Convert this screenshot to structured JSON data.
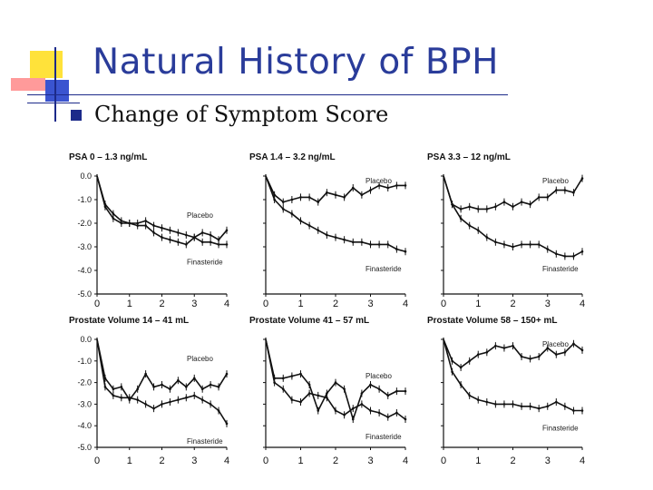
{
  "slide": {
    "title": "Natural History of BPH",
    "bullet": "Change of Symptom Score"
  },
  "colors": {
    "title": "#2a3c9a",
    "bullet": "#1c2a8a",
    "accent_yellow": "#ffe23a",
    "accent_red": "#ff8080",
    "line": "#111111"
  },
  "chart_data": [
    {
      "type": "line",
      "title": "PSA 0 – 1.3 ng/mL",
      "x": [
        0,
        0.25,
        0.5,
        0.75,
        1,
        1.25,
        1.5,
        1.75,
        2,
        2.25,
        2.5,
        2.75,
        3,
        3.25,
        3.5,
        3.75,
        4
      ],
      "xticks": [
        "0",
        "1",
        "2",
        "3",
        "4"
      ],
      "yticks": [
        "0.0",
        "-1.0",
        "-2.0",
        "-3.0",
        "-4.0",
        "-5.0"
      ],
      "ylim": [
        -5,
        0
      ],
      "series": [
        {
          "name": "Placebo",
          "values": [
            0,
            -1.2,
            -1.6,
            -1.9,
            -2.0,
            -2.0,
            -1.9,
            -2.1,
            -2.2,
            -2.3,
            -2.4,
            -2.5,
            -2.6,
            -2.4,
            -2.5,
            -2.7,
            -2.3
          ]
        },
        {
          "name": "Finasteride",
          "values": [
            0,
            -1.3,
            -1.8,
            -2.0,
            -2.0,
            -2.1,
            -2.1,
            -2.4,
            -2.6,
            -2.7,
            -2.8,
            -2.9,
            -2.6,
            -2.8,
            -2.8,
            -2.9,
            -2.9
          ]
        }
      ]
    },
    {
      "type": "line",
      "title": "PSA 1.4 – 3.2 ng/mL",
      "x": [
        0,
        0.25,
        0.5,
        0.75,
        1,
        1.25,
        1.5,
        1.75,
        2,
        2.25,
        2.5,
        2.75,
        3,
        3.25,
        3.5,
        3.75,
        4
      ],
      "xticks": [
        "0",
        "1",
        "2",
        "3",
        "4"
      ],
      "ylim": [
        -5,
        0
      ],
      "series": [
        {
          "name": "Placebo",
          "values": [
            0,
            -0.8,
            -1.1,
            -1.0,
            -0.9,
            -0.9,
            -1.1,
            -0.7,
            -0.8,
            -0.9,
            -0.5,
            -0.8,
            -0.6,
            -0.4,
            -0.5,
            -0.4,
            -0.4
          ]
        },
        {
          "name": "Finasteride",
          "values": [
            0,
            -1.0,
            -1.4,
            -1.6,
            -1.9,
            -2.1,
            -2.3,
            -2.5,
            -2.6,
            -2.7,
            -2.8,
            -2.8,
            -2.9,
            -2.9,
            -2.9,
            -3.1,
            -3.2
          ]
        }
      ]
    },
    {
      "type": "line",
      "title": "PSA 3.3 – 12 ng/mL",
      "x": [
        0,
        0.25,
        0.5,
        0.75,
        1,
        1.25,
        1.5,
        1.75,
        2,
        2.25,
        2.5,
        2.75,
        3,
        3.25,
        3.5,
        3.75,
        4
      ],
      "xticks": [
        "0",
        "1",
        "2",
        "3",
        "4"
      ],
      "ylim": [
        -5,
        0
      ],
      "series": [
        {
          "name": "Placebo",
          "values": [
            0,
            -1.2,
            -1.4,
            -1.3,
            -1.4,
            -1.4,
            -1.3,
            -1.1,
            -1.3,
            -1.1,
            -1.2,
            -0.9,
            -0.9,
            -0.6,
            -0.6,
            -0.7,
            -0.1
          ]
        },
        {
          "name": "Finasteride",
          "values": [
            0,
            -1.2,
            -1.8,
            -2.1,
            -2.3,
            -2.6,
            -2.8,
            -2.9,
            -3.0,
            -2.9,
            -2.9,
            -2.9,
            -3.1,
            -3.3,
            -3.4,
            -3.4,
            -3.2
          ]
        }
      ]
    },
    {
      "type": "line",
      "title": "Prostate Volume 14 – 41 mL",
      "x": [
        0,
        0.25,
        0.5,
        0.75,
        1,
        1.25,
        1.5,
        1.75,
        2,
        2.25,
        2.5,
        2.75,
        3,
        3.25,
        3.5,
        3.75,
        4
      ],
      "xticks": [
        "0",
        "1",
        "2",
        "3",
        "4"
      ],
      "yticks": [
        "0.0",
        "-1.0",
        "-2.0",
        "-3.0",
        "-4.0",
        "-5.0"
      ],
      "ylim": [
        -5,
        0
      ],
      "series": [
        {
          "name": "Placebo",
          "values": [
            0,
            -1.8,
            -2.3,
            -2.2,
            -2.8,
            -2.3,
            -1.6,
            -2.2,
            -2.1,
            -2.3,
            -1.9,
            -2.2,
            -1.8,
            -2.3,
            -2.1,
            -2.2,
            -1.6
          ]
        },
        {
          "name": "Finasteride",
          "values": [
            0,
            -2.2,
            -2.6,
            -2.7,
            -2.7,
            -2.8,
            -3.0,
            -3.2,
            -3.0,
            -2.9,
            -2.8,
            -2.7,
            -2.6,
            -2.8,
            -3.0,
            -3.3,
            -3.9
          ]
        }
      ]
    },
    {
      "type": "line",
      "title": "Prostate Volume 41 – 57 mL",
      "x": [
        0,
        0.25,
        0.5,
        0.75,
        1,
        1.25,
        1.5,
        1.75,
        2,
        2.25,
        2.5,
        2.75,
        3,
        3.25,
        3.5,
        3.75,
        4
      ],
      "xticks": [
        "0",
        "1",
        "2",
        "3",
        "4"
      ],
      "ylim": [
        -5,
        0
      ],
      "series": [
        {
          "name": "Placebo",
          "values": [
            0,
            -1.8,
            -1.8,
            -1.7,
            -1.6,
            -2.1,
            -3.3,
            -2.5,
            -2.0,
            -2.3,
            -3.7,
            -2.5,
            -2.1,
            -2.3,
            -2.6,
            -2.4,
            -2.4
          ]
        },
        {
          "name": "Finasteride",
          "values": [
            0,
            -2.0,
            -2.3,
            -2.8,
            -2.9,
            -2.5,
            -2.6,
            -2.7,
            -3.3,
            -3.5,
            -3.2,
            -3.0,
            -3.3,
            -3.4,
            -3.6,
            -3.4,
            -3.7
          ]
        }
      ]
    },
    {
      "type": "line",
      "title": "Prostate Volume 58 – 150+ mL",
      "x": [
        0,
        0.25,
        0.5,
        0.75,
        1,
        1.25,
        1.5,
        1.75,
        2,
        2.25,
        2.5,
        2.75,
        3,
        3.25,
        3.5,
        3.75,
        4
      ],
      "xticks": [
        "0",
        "1",
        "2",
        "3",
        "4"
      ],
      "ylim": [
        -5,
        0
      ],
      "series": [
        {
          "name": "Placebo",
          "values": [
            0,
            -1.0,
            -1.3,
            -1.0,
            -0.7,
            -0.6,
            -0.3,
            -0.4,
            -0.3,
            -0.8,
            -0.9,
            -0.8,
            -0.4,
            -0.7,
            -0.6,
            -0.2,
            -0.5
          ]
        },
        {
          "name": "Finasteride",
          "values": [
            0,
            -1.5,
            -2.1,
            -2.6,
            -2.8,
            -2.9,
            -3.0,
            -3.0,
            -3.0,
            -3.1,
            -3.1,
            -3.2,
            -3.1,
            -2.9,
            -3.1,
            -3.3,
            -3.3
          ]
        }
      ]
    }
  ]
}
